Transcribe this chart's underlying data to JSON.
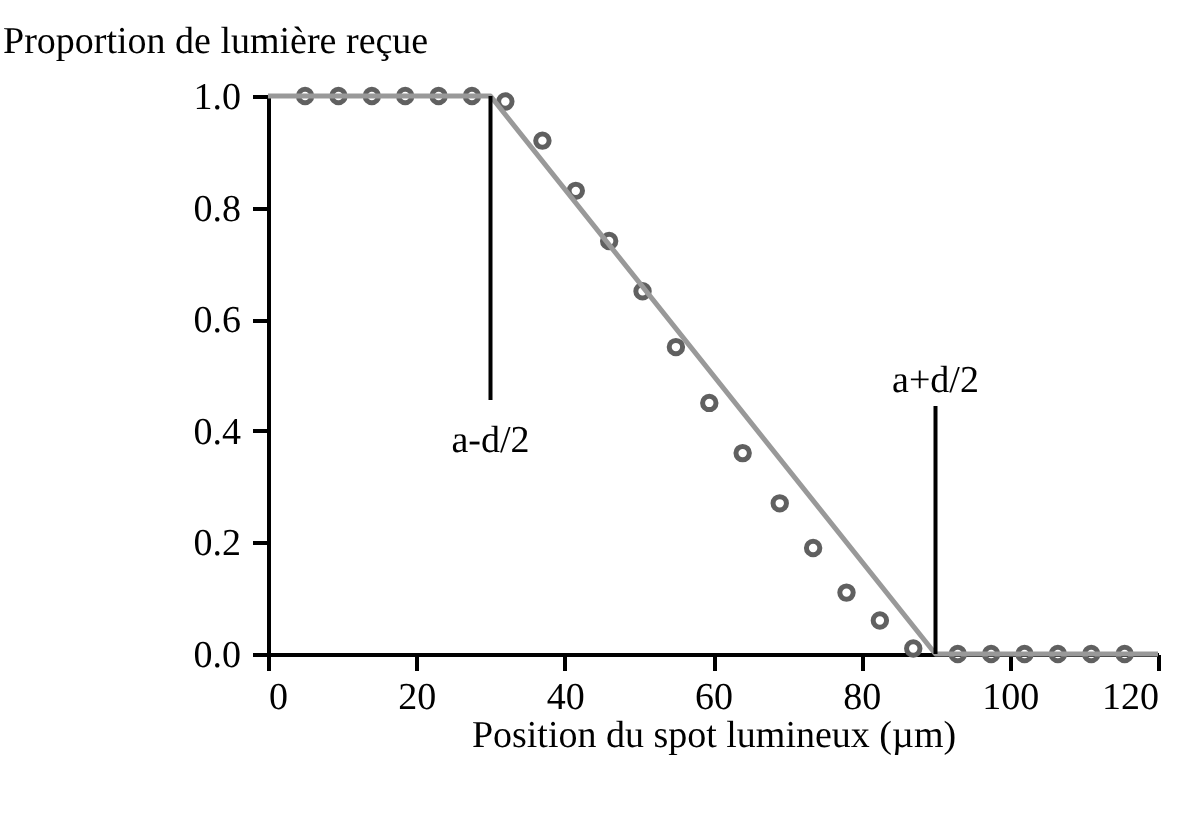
{
  "chart_data": {
    "type": "scatter",
    "ylabel": "Proportion de lumière reçue",
    "xlabel": "Position du spot lumineux (µm)",
    "series": [
      {
        "color": "#606060",
        "marker": "circle",
        "x": [
          5,
          9.5,
          14,
          18.5,
          23,
          27.5,
          32,
          37,
          41.5,
          46,
          50.5,
          55,
          59.5,
          64,
          69,
          73.5,
          78,
          82.5,
          87,
          93,
          97.5,
          102,
          106.5,
          111,
          115.5
        ],
        "values": [
          1,
          1,
          1,
          1,
          1,
          1,
          0.99,
          0.92,
          0.83,
          0.74,
          0.65,
          0.55,
          0.45,
          0.36,
          0.27,
          0.19,
          0.11,
          0.06,
          0.01,
          0,
          0,
          0,
          0,
          0,
          0
        ]
      },
      {
        "type": "line",
        "color": "#999999",
        "marker": "none",
        "x": [
          0,
          30,
          90,
          120
        ],
        "values": [
          1,
          1,
          0,
          0
        ]
      }
    ],
    "ref_lines": [
      {
        "axis": "x",
        "value": 30,
        "label": "a-d/2",
        "color": "#000000"
      },
      {
        "axis": "x",
        "value": 90,
        "label": "a+d/2",
        "color": "#000000"
      }
    ],
    "xlim": [
      0,
      120
    ],
    "xticks": [
      0,
      20,
      40,
      60,
      80,
      100,
      120
    ],
    "ylim": [
      0,
      1.0
    ],
    "yticks": [
      {
        "value": 0,
        "label": "0.0"
      },
      {
        "value": 0.2,
        "label": "0.2"
      },
      {
        "value": 0.4,
        "label": "0.4"
      },
      {
        "value": 0.6,
        "label": "0.6"
      },
      {
        "value": 0.8,
        "label": "0.8"
      },
      {
        "value": 1.0,
        "label": "1.0"
      }
    ],
    "grid": false,
    "legend": false
  }
}
